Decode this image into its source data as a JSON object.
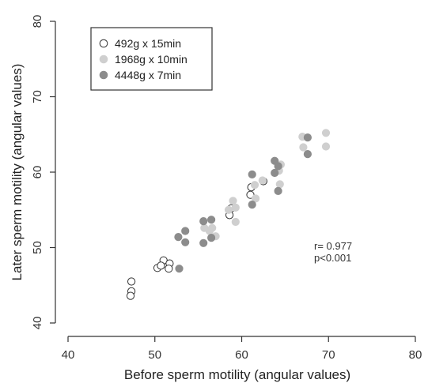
{
  "chart_data": {
    "type": "scatter",
    "xlabel": "Before sperm motility (angular values)",
    "ylabel": "Later sperm motility (angular values)",
    "xlim": [
      40,
      80
    ],
    "ylim": [
      40,
      80
    ],
    "xticks": [
      "40",
      "50",
      "60",
      "70",
      "80"
    ],
    "yticks": [
      "40",
      "50",
      "60",
      "70",
      "80"
    ],
    "grid": false,
    "legend_position": "top-left",
    "annotations": [
      "r= 0.977",
      "p<0.001"
    ],
    "series": [
      {
        "name": "492g x 15min",
        "marker_color": "#ffffff",
        "edge_color": "#333333",
        "points": [
          [
            47.3,
            45.5
          ],
          [
            47.3,
            44.2
          ],
          [
            47.2,
            43.6
          ],
          [
            50.3,
            47.3
          ],
          [
            51.0,
            48.3
          ],
          [
            51.7,
            47.9
          ],
          [
            51.6,
            47.2
          ],
          [
            50.7,
            47.6
          ],
          [
            58.6,
            54.3
          ],
          [
            58.8,
            55.2
          ],
          [
            61.0,
            57.0
          ],
          [
            61.1,
            58.0
          ],
          [
            62.5,
            58.8
          ]
        ]
      },
      {
        "name": "1968g x 10min",
        "marker_color": "#cfcfcf",
        "edge_color": "#cfcfcf",
        "points": [
          [
            55.7,
            52.6
          ],
          [
            56.6,
            52.6
          ],
          [
            56.3,
            52.2
          ],
          [
            57.0,
            51.5
          ],
          [
            58.5,
            55.0
          ],
          [
            59.0,
            56.2
          ],
          [
            59.3,
            55.3
          ],
          [
            59.3,
            53.4
          ],
          [
            61.6,
            56.5
          ],
          [
            61.5,
            58.3
          ],
          [
            62.4,
            58.9
          ],
          [
            64.4,
            58.4
          ],
          [
            64.3,
            60.2
          ],
          [
            64.5,
            61.0
          ],
          [
            67.0,
            64.7
          ],
          [
            67.1,
            63.3
          ],
          [
            69.7,
            65.2
          ],
          [
            69.7,
            63.4
          ]
        ]
      },
      {
        "name": "4448g x 7min",
        "marker_color": "#8c8c8c",
        "edge_color": "#8c8c8c",
        "points": [
          [
            52.7,
            51.4
          ],
          [
            53.5,
            52.2
          ],
          [
            53.5,
            50.7
          ],
          [
            52.8,
            47.2
          ],
          [
            55.6,
            53.5
          ],
          [
            56.5,
            53.7
          ],
          [
            55.6,
            50.6
          ],
          [
            56.5,
            51.3
          ],
          [
            61.2,
            59.7
          ],
          [
            61.2,
            55.7
          ],
          [
            63.8,
            61.5
          ],
          [
            63.8,
            59.9
          ],
          [
            64.2,
            60.8
          ],
          [
            64.2,
            57.5
          ],
          [
            67.6,
            64.6
          ],
          [
            67.6,
            62.4
          ]
        ]
      }
    ]
  }
}
